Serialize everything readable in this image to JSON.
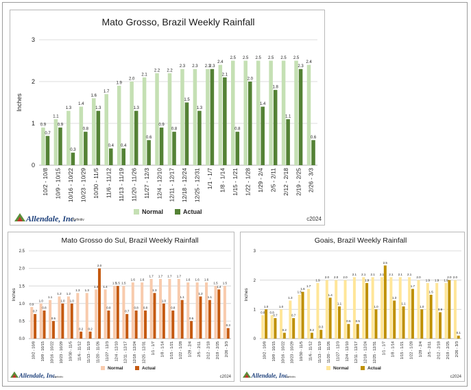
{
  "brand": {
    "logo": "Allendale, Inc.",
    "source": "Refinitiv",
    "copyright": "c2024"
  },
  "colors": {
    "mt_normal": "#c5e0b4",
    "mt_actual": "#548235",
    "ms_normal": "#f8cbad",
    "ms_actual": "#c55a11",
    "go_normal": "#ffe699",
    "go_actual": "#bf9000"
  },
  "chart_data": [
    {
      "type": "bar",
      "title": "Mato Grosso, Brazil Weekly Rainfall",
      "ylabel": "Inches",
      "ylim": [
        0,
        3
      ],
      "yticks": [
        "0",
        "1",
        "2",
        "3"
      ],
      "categories": [
        "10/2 - 10/8",
        "10/9 - 10/15",
        "10/16 - 10/22",
        "10/23 - 10/29",
        "10/30 - 11/5",
        "11/6 - 11/12",
        "11/13 - 11/19",
        "11/20 - 11/26",
        "11/27 - 12/3",
        "12/4 - 12/10",
        "12/11 - 12/17",
        "12/18 - 12/24",
        "12/25 - 12/31",
        "1/1 - 1/7",
        "1/8 - 1/14",
        "1/15 - 1/21",
        "1/22 - 1/28",
        "1/29 - 2/4",
        "2/5 - 2/11",
        "2/12 - 2/18",
        "2/19 - 2/25",
        "2/26 - 3/3"
      ],
      "series": [
        {
          "name": "Normal",
          "values": [
            0.9,
            1.1,
            1.3,
            1.4,
            1.6,
            1.7,
            1.9,
            2.0,
            2.1,
            2.2,
            2.2,
            2.3,
            2.3,
            2.3,
            2.4,
            2.5,
            2.5,
            2.5,
            2.5,
            2.5,
            2.5,
            2.4
          ],
          "labels": [
            "0.9",
            "1.1",
            "1.3",
            "1.4",
            "1.6",
            "1.7",
            "1.9",
            "2.0",
            "2.1",
            "2.2",
            "2.2",
            "2.3",
            "2.3",
            "2.3",
            "2.4",
            "2.5",
            "2.5",
            "2.5",
            "2.5",
            "2.5",
            "2.5",
            "2.4"
          ]
        },
        {
          "name": "Actual",
          "values": [
            0.7,
            0.9,
            0.3,
            0.8,
            1.3,
            0.4,
            0.4,
            1.3,
            0.6,
            0.9,
            0.8,
            1.5,
            1.3,
            2.3,
            2.1,
            0.8,
            2.0,
            1.4,
            1.8,
            1.1,
            2.3,
            0.6
          ],
          "labels": [
            "0.7",
            "0.9",
            "0.3",
            "0.8",
            "1.3",
            "0.4",
            "0.4",
            "1.3",
            "0.6",
            "0.9",
            "0.8",
            "1.5",
            "1.3",
            "2.3",
            "2.1",
            "0.8",
            "2.0",
            "1.4",
            "1.8",
            "1.1",
            "2.3",
            "0.6"
          ]
        }
      ],
      "legend": "bottom",
      "grid": true
    },
    {
      "type": "bar",
      "title": "Mato Grosso do Sul, Brazil Weekly Rainfall",
      "ylabel": "Inches",
      "ylim": [
        0,
        2.5
      ],
      "yticks": [
        "0.0",
        "0.5",
        "1.0",
        "1.5",
        "2.0",
        "2.5"
      ],
      "categories": [
        "10/2 - 10/8",
        "10/9 - 10/15",
        "10/16 - 10/22",
        "10/23 - 10/29",
        "10/30 - 11/5",
        "11/6 - 11/12",
        "11/13 - 11/19",
        "11/20 - 11/26",
        "11/27 - 12/3",
        "12/4 - 12/10",
        "12/11 - 12/17",
        "12/18 - 12/24",
        "12/25 - 12/31",
        "1/1 - 1/7",
        "1/8 - 1/14",
        "1/15 - 1/21",
        "1/22 - 1/28",
        "1/29 - 2/4",
        "2/5 - 2/11",
        "2/12 - 2/18",
        "2/19 - 2/25",
        "2/26 - 3/3"
      ],
      "series": [
        {
          "name": "Normal",
          "values": [
            0.9,
            1.0,
            1.1,
            1.2,
            1.2,
            1.3,
            1.3,
            1.4,
            1.4,
            1.5,
            1.5,
            1.6,
            1.6,
            1.7,
            1.7,
            1.7,
            1.7,
            1.6,
            1.6,
            1.6,
            1.5,
            1.5
          ],
          "labels": [
            "0.9",
            "1.0",
            "1.1",
            "1.2",
            "1.2",
            "1.3",
            "1.3",
            "1.4",
            "1.4",
            "1.5",
            "1.5",
            "1.6",
            "1.6",
            "1.7",
            "1.7",
            "1.7",
            "1.7",
            "1.6",
            "1.6",
            "1.6",
            "1.5",
            "1.5"
          ]
        },
        {
          "name": "Actual",
          "values": [
            0.7,
            0.8,
            0.5,
            1.0,
            1.0,
            0.2,
            0.2,
            2.0,
            0.8,
            1.5,
            0.7,
            0.8,
            0.8,
            1.3,
            1.0,
            0.8,
            1.1,
            0.5,
            1.2,
            1.1,
            1.4,
            0.3
          ],
          "labels": [
            "0.7",
            "0.8",
            "0.5",
            "1.0",
            "1.0",
            "0.2",
            "0.2",
            "2.0",
            "0.8",
            "1.5",
            "0.7",
            "0.8",
            "0.8",
            "1.3",
            "1.0",
            "0.8",
            "1.1",
            "0.5",
            "1.2",
            "1.1",
            "1.4",
            "0.3"
          ]
        }
      ],
      "legend": "bottom",
      "grid": true
    },
    {
      "type": "bar",
      "title": "Goais, Brazil Weekly Rainfall",
      "ylabel": "Inches",
      "ylim": [
        0,
        3
      ],
      "yticks": [
        "0",
        "1",
        "2",
        "3"
      ],
      "categories": [
        "10/2 - 10/8",
        "10/9 - 10/15",
        "10/16 - 10/22",
        "10/23 - 10/29",
        "10/30 - 11/5",
        "11/6 - 11/12",
        "11/13 - 11/19",
        "11/20 - 11/26",
        "11/27 - 12/3",
        "12/4 - 12/10",
        "12/11 - 12/17",
        "12/18 - 12/24",
        "12/25 - 12/31",
        "1/1 - 1/7",
        "1/8 - 1/14",
        "1/15 - 1/21",
        "1/22 - 1/28",
        "1/29 - 2/4",
        "2/5 - 2/11",
        "2/12 - 2/18",
        "2/19 - 2/25",
        "2/26 - 3/3"
      ],
      "series": [
        {
          "name": "Normal",
          "values": [
            0.8,
            0.8,
            1.0,
            1.3,
            1.5,
            1.7,
            1.9,
            2.0,
            2.0,
            2.0,
            2.1,
            2.1,
            2.1,
            2.1,
            2.1,
            2.1,
            2.1,
            2.0,
            1.9,
            1.9,
            1.9,
            2.0
          ],
          "labels": [
            "0.8",
            "0.8",
            "1.0",
            "1.3",
            "1.5",
            "1.7",
            "1.9",
            "2.0",
            "2.0",
            "2.0",
            "2.1",
            "2.1",
            "2.1",
            "2.1",
            "2.1",
            "2.1",
            "2.1",
            "2.0",
            "1.9",
            "1.9",
            "1.9",
            "2.0"
          ]
        },
        {
          "name": "Actual",
          "values": [
            1.0,
            0.7,
            0.2,
            0.7,
            1.6,
            0.2,
            0.3,
            1.4,
            1.1,
            0.5,
            0.5,
            1.9,
            1.0,
            2.5,
            1.3,
            1.1,
            1.7,
            1.0,
            1.5,
            0.9,
            2.0,
            0.1
          ],
          "labels": [
            "1.0",
            "0.7",
            "0.2",
            "0.7",
            "1.6",
            "0.2",
            "0.3",
            "1.4",
            "1.1",
            "0.5",
            "0.5",
            "1.9",
            "1.0",
            "2.5",
            "1.3",
            "1.1",
            "1.7",
            "1.0",
            "1.5",
            "0.9",
            "2.0",
            "0.1"
          ]
        }
      ],
      "legend": "bottom",
      "grid": true
    }
  ]
}
